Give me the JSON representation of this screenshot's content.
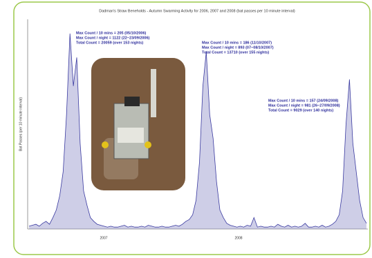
{
  "chart_data": {
    "type": "area",
    "title": "Dadman's Straw Beneholds - Autumn Swarming Activity for 2006, 2007 and 2008 (bat passes per 10 minute interval)",
    "y_label": "Bat Passes (per 10 minute interval)",
    "group_labels": [
      "2007",
      "2008"
    ],
    "annotations": [
      [
        "Max Count / 10 mins = 205 (05/10/2006)",
        "Max Count / night = 1122 (22~23/09/2006)",
        "Total Count = 20059 (over 153 nights)"
      ],
      [
        "Max Count / 10 mins = 186 (11/10/2007)",
        "Max Count / night = 893 (07~08/10/2007)",
        "Total Count = 13710 (over 155 nights)"
      ],
      [
        "Max Count / 10 mins = 157 (24/09/2008)",
        "Max Count / night = 981 (26~27/09/2008)",
        "Total Count = 9029 (over 140 nights)"
      ]
    ],
    "color": "#3a3aa0",
    "ylim": [
      0,
      220
    ],
    "values": [
      3,
      4,
      5,
      3,
      6,
      8,
      5,
      12,
      20,
      35,
      60,
      120,
      205,
      150,
      180,
      90,
      40,
      25,
      12,
      8,
      5,
      4,
      3,
      2,
      3,
      2,
      2,
      3,
      4,
      2,
      3,
      2,
      2,
      3,
      2,
      4,
      3,
      2,
      2,
      3,
      2,
      2,
      3,
      4,
      3,
      5,
      8,
      10,
      15,
      30,
      70,
      150,
      186,
      120,
      95,
      50,
      20,
      12,
      6,
      4,
      3,
      2,
      3,
      2,
      4,
      3,
      12,
      2,
      3,
      2,
      2,
      3,
      2,
      5,
      3,
      2,
      4,
      2,
      3,
      2,
      3,
      6,
      2,
      2,
      3,
      2,
      4,
      2,
      3,
      5,
      8,
      15,
      40,
      110,
      157,
      90,
      60,
      30,
      12,
      6
    ]
  }
}
